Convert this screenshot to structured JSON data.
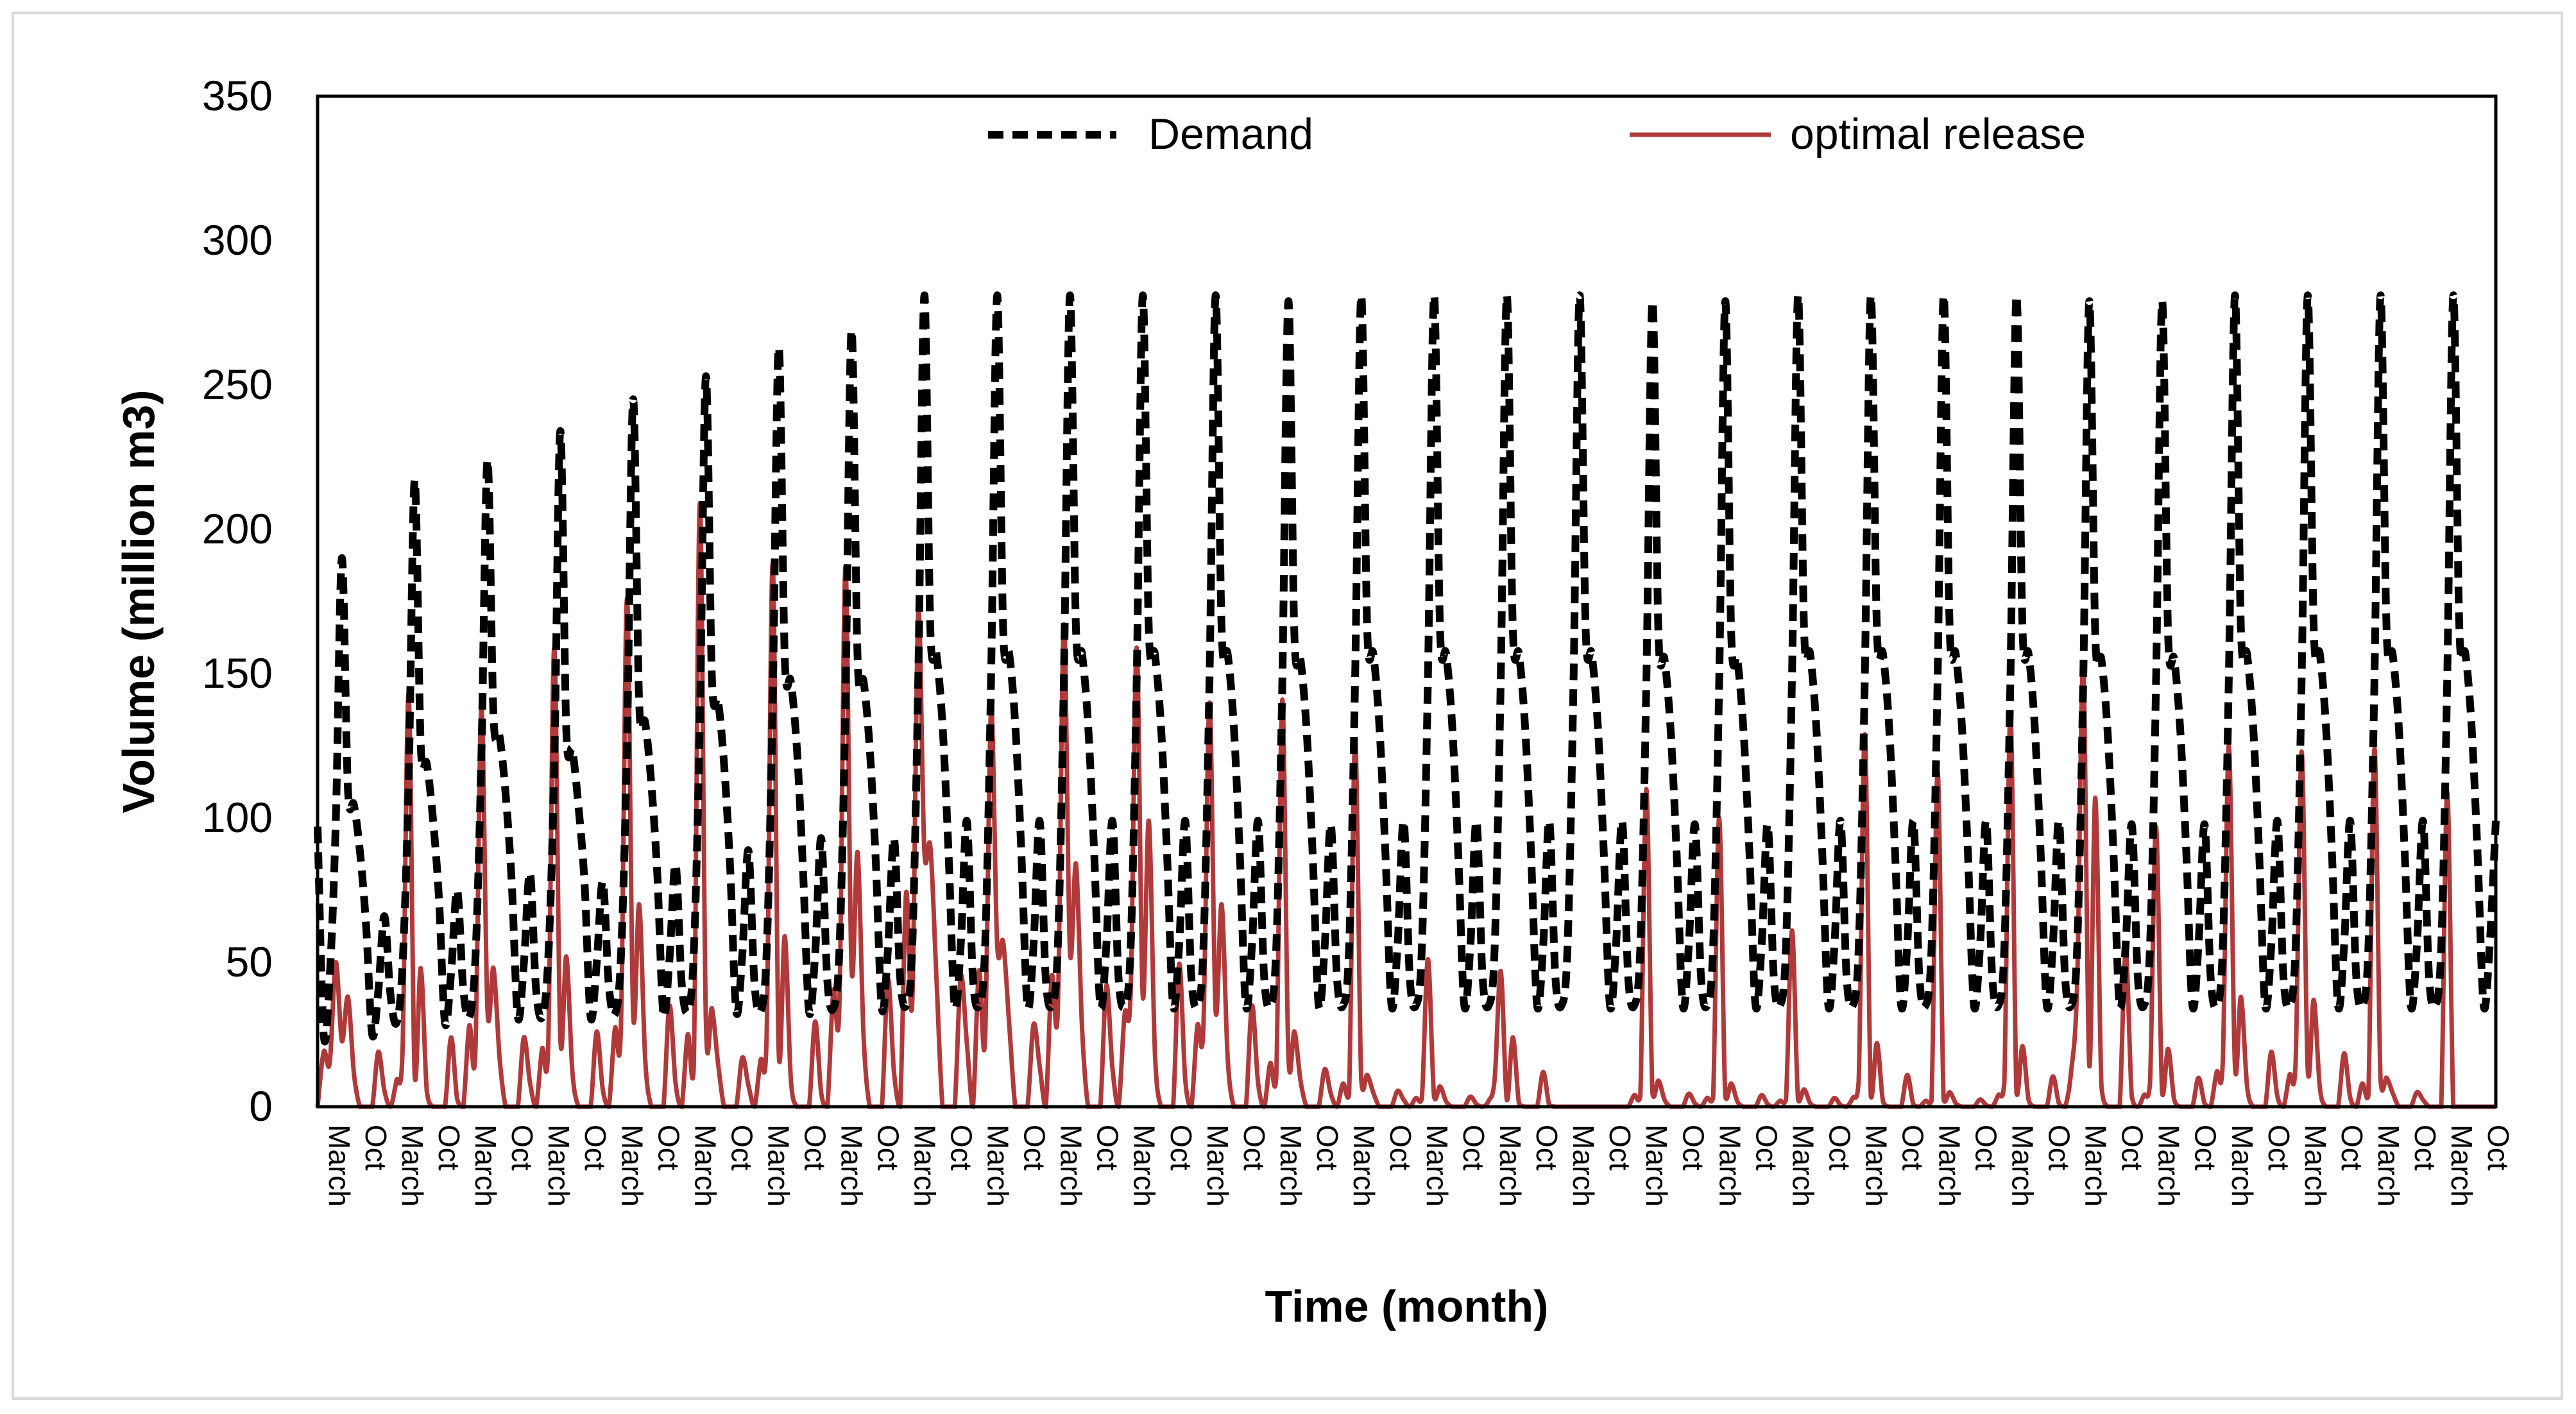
{
  "chart_data": {
    "type": "line",
    "title": "",
    "xlabel": "Time (month)",
    "ylabel": "Volume (million m3)",
    "ylim": [
      0,
      350
    ],
    "yticks": [
      "0",
      "50",
      "100",
      "150",
      "200",
      "250",
      "300",
      "350"
    ],
    "xtick_labels_cycle": [
      "March",
      "Oct"
    ],
    "years": 30,
    "months_per_year": 12,
    "grid": false,
    "legend_position": "top",
    "colors": {
      "demand": "#000000",
      "release": "#b03a3a",
      "frame": "#d9d9d9"
    },
    "series": [
      {
        "name": "Demand",
        "style": "dashed",
        "year_peaks": [
          190,
          217,
          224,
          234,
          245,
          253,
          263,
          269,
          281,
          281,
          281,
          281,
          281,
          279,
          281,
          281,
          281,
          281,
          279,
          279,
          281,
          281,
          281,
          281,
          279,
          279,
          281,
          281,
          281,
          281
        ],
        "year_troughs": [
          25,
          29,
          31,
          31,
          32,
          33,
          33,
          34,
          35,
          35,
          35,
          35,
          35,
          35,
          35,
          35,
          35,
          35,
          35,
          35,
          35,
          35,
          35,
          35,
          35,
          35,
          35,
          35,
          35,
          35
        ],
        "year_shoulders": [
          110,
          125,
          135,
          130,
          140,
          148,
          155,
          155,
          165,
          165,
          165,
          165,
          165,
          163,
          165,
          165,
          165,
          165,
          163,
          163,
          165,
          165,
          165,
          165,
          163,
          163,
          165,
          165,
          165,
          165
        ],
        "first_value": 97
      },
      {
        "name": "optimal release",
        "style": "solid",
        "year_peaks": [
          50,
          143,
          138,
          159,
          176,
          209,
          188,
          187,
          171,
          138,
          167,
          159,
          140,
          141,
          127,
          51,
          47,
          0,
          110,
          100,
          61,
          129,
          116,
          136,
          153,
          97,
          125,
          123,
          124,
          109
        ],
        "year_secondary": [
          38,
          48,
          48,
          52,
          70,
          34,
          59,
          88,
          90,
          57,
          84,
          99,
          70,
          26,
          11,
          7,
          24,
          0,
          9,
          8,
          6,
          22,
          5,
          21,
          107,
          20,
          38,
          37,
          10,
          0
        ],
        "year_small": [
          19,
          9,
          28,
          20,
          27,
          25,
          16,
          40,
          74,
          47,
          45,
          32,
          28,
          15,
          8,
          3,
          2,
          0,
          4,
          3,
          2,
          3,
          2,
          4,
          12,
          4,
          12,
          11,
          8,
          0
        ]
      }
    ]
  }
}
